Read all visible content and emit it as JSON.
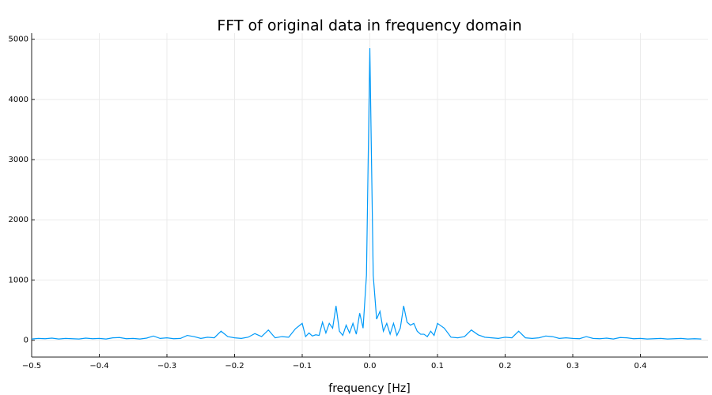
{
  "chart_data": {
    "type": "line",
    "title": "FFT of original data in frequency domain",
    "x_label": "frequency [Hz]",
    "x": [
      -0.5,
      -0.49,
      -0.48,
      -0.47,
      -0.46,
      -0.45,
      -0.44,
      -0.43,
      -0.42,
      -0.41,
      -0.4,
      -0.39,
      -0.38,
      -0.37,
      -0.36,
      -0.35,
      -0.34,
      -0.33,
      -0.32,
      -0.31,
      -0.3,
      -0.29,
      -0.28,
      -0.27,
      -0.26,
      -0.25,
      -0.24,
      -0.23,
      -0.22,
      -0.21,
      -0.2,
      -0.19,
      -0.18,
      -0.17,
      -0.16,
      -0.15,
      -0.14,
      -0.13,
      -0.12,
      -0.11,
      -0.1,
      -0.095,
      -0.09,
      -0.085,
      -0.08,
      -0.075,
      -0.07,
      -0.065,
      -0.06,
      -0.055,
      -0.05,
      -0.045,
      -0.04,
      -0.035,
      -0.03,
      -0.025,
      -0.02,
      -0.015,
      -0.01,
      -0.005,
      0,
      0.005,
      0.01,
      0.015,
      0.02,
      0.025,
      0.03,
      0.035,
      0.04,
      0.045,
      0.05,
      0.055,
      0.06,
      0.065,
      0.07,
      0.075,
      0.08,
      0.085,
      0.09,
      0.095,
      0.1,
      0.11,
      0.12,
      0.13,
      0.14,
      0.15,
      0.16,
      0.17,
      0.18,
      0.19,
      0.2,
      0.21,
      0.22,
      0.23,
      0.24,
      0.25,
      0.26,
      0.27,
      0.28,
      0.29,
      0.3,
      0.31,
      0.32,
      0.33,
      0.34,
      0.35,
      0.36,
      0.37,
      0.38,
      0.39,
      0.4,
      0.41,
      0.42,
      0.43,
      0.44,
      0.45,
      0.46,
      0.47,
      0.48,
      0.49
    ],
    "series": [
      {
        "color": "#009af9",
        "values": [
          20,
          30,
          25,
          35,
          20,
          30,
          25,
          20,
          35,
          25,
          30,
          20,
          40,
          45,
          25,
          30,
          20,
          35,
          70,
          30,
          40,
          25,
          30,
          80,
          60,
          30,
          50,
          40,
          150,
          60,
          40,
          30,
          50,
          110,
          60,
          170,
          40,
          60,
          50,
          190,
          280,
          60,
          120,
          70,
          90,
          80,
          300,
          120,
          280,
          200,
          570,
          150,
          80,
          250,
          120,
          280,
          100,
          450,
          200,
          1080,
          4850,
          1080,
          350,
          480,
          150,
          280,
          100,
          280,
          80,
          200,
          570,
          300,
          250,
          280,
          150,
          100,
          100,
          60,
          150,
          80,
          280,
          200,
          50,
          40,
          60,
          170,
          90,
          50,
          40,
          30,
          50,
          40,
          150,
          40,
          30,
          40,
          70,
          60,
          30,
          40,
          30,
          25,
          60,
          30,
          25,
          35,
          20,
          45,
          40,
          25,
          30,
          20,
          25,
          30,
          20,
          25,
          30,
          20,
          25,
          20
        ]
      }
    ],
    "xlim": [
      -0.5,
      0.5
    ],
    "ylim": [
      -280,
      5100
    ],
    "xticks": [
      {
        "value": -0.5,
        "label": "−0.5"
      },
      {
        "value": -0.4,
        "label": "−0.4"
      },
      {
        "value": -0.3,
        "label": "−0.3"
      },
      {
        "value": -0.2,
        "label": "−0.2"
      },
      {
        "value": -0.1,
        "label": "−0.1"
      },
      {
        "value": 0,
        "label": "0.0"
      },
      0.1,
      0.2,
      0.3,
      0.4
    ],
    "yticks": [
      0,
      1000,
      2000,
      3000,
      4000,
      5000
    ],
    "grid": true
  }
}
